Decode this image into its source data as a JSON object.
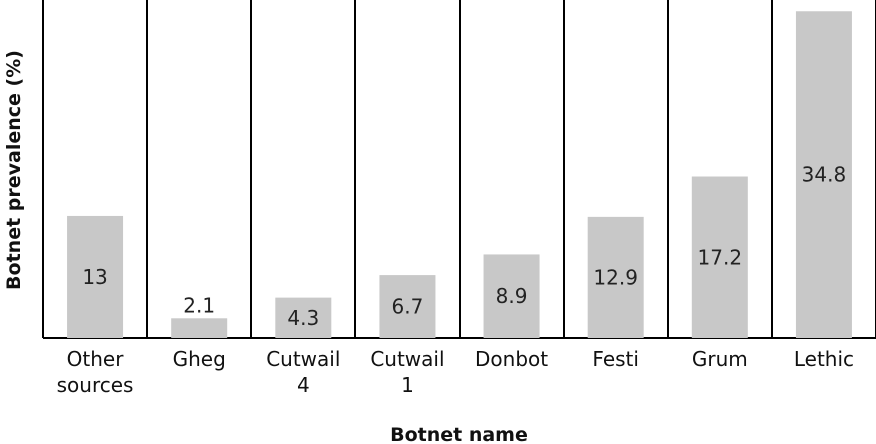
{
  "chart_data": {
    "type": "bar",
    "categories": [
      [
        "Other",
        "sources"
      ],
      [
        "Gheg"
      ],
      [
        "Cutwail",
        "4"
      ],
      [
        "Cutwail",
        "1"
      ],
      [
        "Donbot"
      ],
      [
        "Festi"
      ],
      [
        "Grum"
      ],
      [
        "Lethic"
      ]
    ],
    "values": [
      13,
      2.1,
      4.3,
      6.7,
      8.9,
      12.9,
      17.2,
      34.8
    ],
    "value_labels": [
      "13",
      "2.1",
      "4.3",
      "6.7",
      "8.9",
      "12.9",
      "17.2",
      "34.8"
    ],
    "title": "",
    "xlabel": "Botnet name",
    "ylabel": "Botnet prevalence (%)",
    "ylim": [
      0,
      36
    ],
    "grid": false,
    "colors": {
      "bar": "#c8c8c8",
      "divider": "#000000"
    }
  }
}
